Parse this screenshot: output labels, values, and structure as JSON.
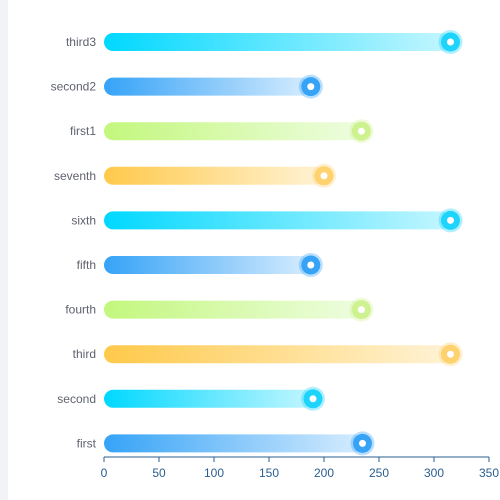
{
  "chart_data": {
    "type": "bar",
    "orientation": "horizontal",
    "categories": [
      "third3",
      "second2",
      "first1",
      "seventh",
      "sixth",
      "fifth",
      "fourth",
      "third",
      "second",
      "first"
    ],
    "values": [
      315,
      188,
      234,
      200,
      315,
      188,
      234,
      315,
      190,
      235
    ],
    "x_ticks": [
      "0",
      "50",
      "100",
      "150",
      "200",
      "250",
      "300",
      "350"
    ],
    "xlim": [
      0,
      350
    ],
    "grid": false,
    "legend": "none",
    "palette": [
      {
        "start": "#36a3f7",
        "end": "#d6ecfe",
        "cap": "#36a3f7"
      },
      {
        "start": "#00d8ff",
        "end": "#c4f6ff",
        "cap": "#1ed4fb"
      },
      {
        "start": "#ffc94a",
        "end": "#fff3d6",
        "cap": "#fdd26f"
      },
      {
        "start": "#c3f77d",
        "end": "#eefde0",
        "cap": "#cdf28f"
      }
    ],
    "axis_color": "#2a5d8f"
  }
}
